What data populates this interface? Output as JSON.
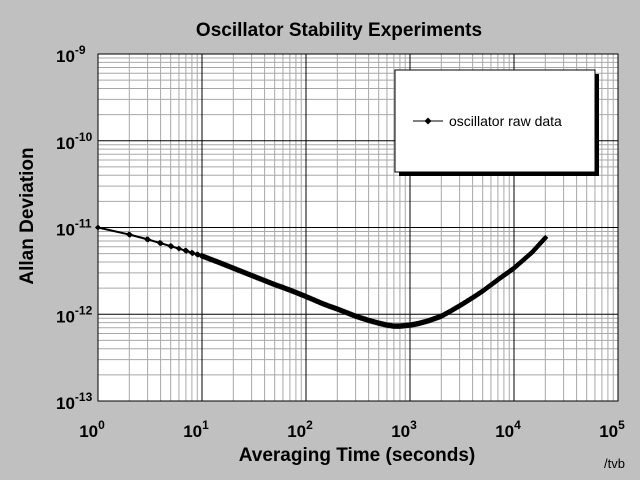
{
  "chart_data": {
    "type": "line",
    "title": "Oscillator Stability Experiments",
    "xlabel": "Averaging Time (seconds)",
    "ylabel": "Allan Deviation",
    "x_scale": "log",
    "y_scale": "log",
    "xlim": [
      1,
      100000
    ],
    "ylim": [
      1e-13,
      1e-09
    ],
    "x_ticks": [
      {
        "base": "10",
        "exp": "0"
      },
      {
        "base": "10",
        "exp": "1"
      },
      {
        "base": "10",
        "exp": "2"
      },
      {
        "base": "10",
        "exp": "3"
      },
      {
        "base": "10",
        "exp": "4"
      },
      {
        "base": "10",
        "exp": "5"
      }
    ],
    "y_ticks": [
      {
        "base": "10",
        "exp": "-13"
      },
      {
        "base": "10",
        "exp": "-12"
      },
      {
        "base": "10",
        "exp": "-11"
      },
      {
        "base": "10",
        "exp": "-10"
      },
      {
        "base": "10",
        "exp": "-9"
      }
    ],
    "grid": true,
    "legend_position": "top-right",
    "series": [
      {
        "name": "oscillator raw data",
        "color": "#000000",
        "marker": "diamond",
        "x": [
          1,
          2,
          3,
          4,
          5,
          6,
          7,
          8,
          9,
          10,
          15,
          20,
          30,
          50,
          70,
          100,
          150,
          200,
          300,
          400,
          500,
          600,
          700,
          800,
          1000,
          1200,
          1500,
          2000,
          2500,
          3000,
          4000,
          5000,
          7000,
          10000,
          15000,
          20000
        ],
        "y": [
          1e-11,
          8.3e-12,
          7.3e-12,
          6.6e-12,
          6.1e-12,
          5.7e-12,
          5.4e-12,
          5.1e-12,
          4.9e-12,
          4.7e-12,
          3.9e-12,
          3.4e-12,
          2.8e-12,
          2.2e-12,
          1.9e-12,
          1.6e-12,
          1.3e-12,
          1.15e-12,
          9.5e-13,
          8.5e-13,
          7.9e-13,
          7.5e-13,
          7.3e-13,
          7.3e-13,
          7.5e-13,
          7.8e-13,
          8.4e-13,
          9.5e-13,
          1.1e-12,
          1.25e-12,
          1.55e-12,
          1.85e-12,
          2.5e-12,
          3.4e-12,
          5.2e-12,
          7.6e-12
        ]
      }
    ]
  },
  "credit": "/tvb"
}
